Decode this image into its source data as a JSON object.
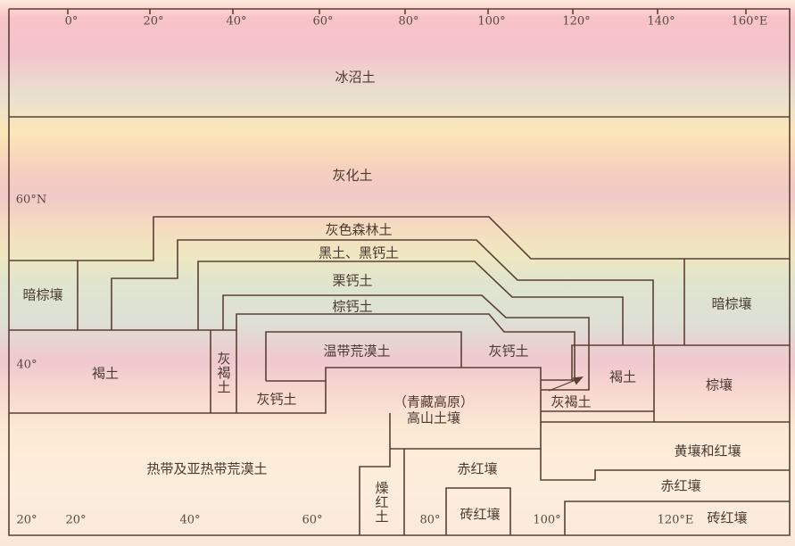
{
  "top_axis": [
    "0°",
    "20°",
    "40°",
    "60°",
    "80°",
    "100°",
    "120°",
    "140°",
    "160°E"
  ],
  "lat_axis": [
    "60°N",
    "40°",
    "20°"
  ],
  "bottom_axis": [
    "20°",
    "40°",
    "60°",
    "80°",
    "100°",
    "120°E"
  ],
  "regions": {
    "tundra": "冰沼土",
    "podzol": "灰化土",
    "gray_forest": "灰色森林土",
    "chernozem": "黑土、黑钙土",
    "chestnut": "栗钙土",
    "brown_calcic": "棕钙土",
    "dark_brown_left": "暗棕壤",
    "dark_brown_right": "暗棕壤",
    "cinnamon_left": "褐土",
    "gray_cinnamon_left": "灰褐土",
    "sierozem_left": "灰钙土",
    "temperate_desert": "温带荒漠土",
    "sierozem_right": "灰钙土",
    "cinnamon_right": "褐土",
    "gray_cinnamon_right": "灰褐土",
    "brown_earth": "棕壤",
    "plateau_note": "（青藏高原）",
    "alpine": "高山土壤",
    "tropical_desert": "热带及亚热带荒漠土",
    "dry_red": "燥红土",
    "lateritic_red_mid": "赤红壤",
    "laterite_mid": "砖红壤",
    "yellow_red": "黄壤和红壤",
    "lateritic_red_right": "赤红壤",
    "laterite_right": "砖红壤"
  }
}
